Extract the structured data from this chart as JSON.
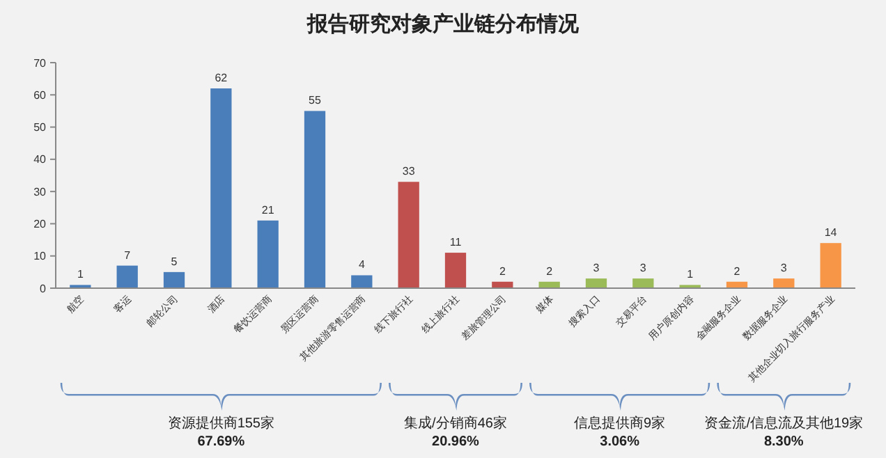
{
  "chart_data": {
    "type": "bar",
    "title": "报告研究对象产业链分布情况",
    "categories": [
      "航空",
      "客运",
      "邮轮公司",
      "酒店",
      "餐饮运营商",
      "景区运营商",
      "其他旅游零售运营商",
      "线下旅行社",
      "线上旅行社",
      "差旅管理公司",
      "媒体",
      "搜索入口",
      "交易平台",
      "用户原创内容",
      "金融服务企业",
      "数据服务企业",
      "其他企业切入旅行服务产业"
    ],
    "values": [
      1,
      7,
      5,
      62,
      21,
      55,
      4,
      33,
      11,
      2,
      2,
      3,
      3,
      1,
      2,
      3,
      14
    ],
    "colors": [
      "#4a7ebb",
      "#4a7ebb",
      "#4a7ebb",
      "#4a7ebb",
      "#4a7ebb",
      "#4a7ebb",
      "#4a7ebb",
      "#c0504d",
      "#c0504d",
      "#c0504d",
      "#9bbb59",
      "#9bbb59",
      "#9bbb59",
      "#9bbb59",
      "#f79646",
      "#f79646",
      "#f79646"
    ],
    "ylim": [
      0,
      70
    ],
    "yticks": [
      0,
      10,
      20,
      30,
      40,
      50,
      60,
      70
    ],
    "data_labels": true,
    "grid": false,
    "annotations": [
      "资源提供商155家",
      "67.69%",
      "集成/分销商46家",
      "20.96%",
      "信息提供商9家",
      "3.06%",
      "资金流/信息流及其他19家",
      "8.30%"
    ]
  }
}
